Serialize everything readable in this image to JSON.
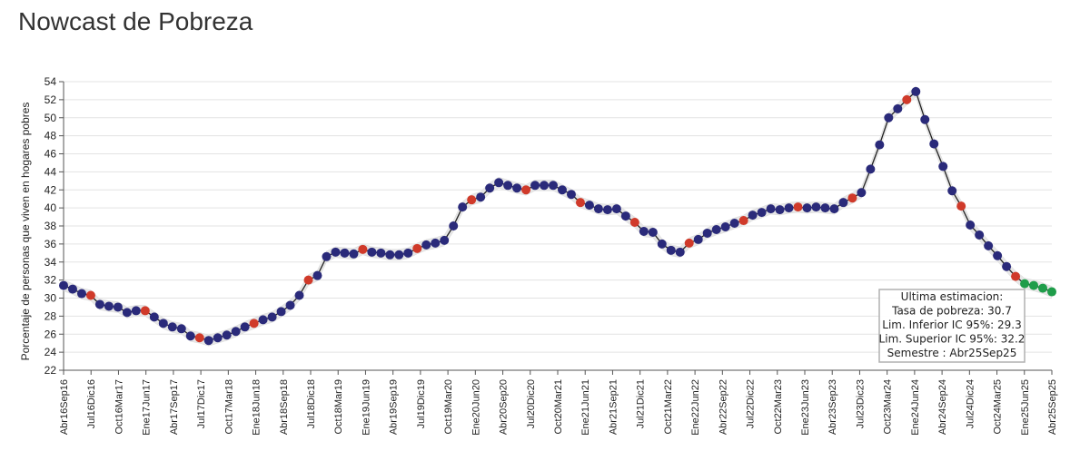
{
  "page": {
    "title": "Nowcast de Pobreza"
  },
  "chart_data": {
    "type": "line",
    "ylabel": "Porcentaje de personas que viven en hogares pobres",
    "xlabel": "",
    "ylim": [
      22,
      54
    ],
    "yticks": [
      22,
      24,
      26,
      28,
      30,
      32,
      34,
      36,
      38,
      40,
      42,
      44,
      46,
      48,
      50,
      52,
      54
    ],
    "grid": true,
    "x_ticks": [
      "Abr16Sep16",
      "Jul16Dic16",
      "Oct16Mar17",
      "Ene17Jun17",
      "Abr17Sep17",
      "Jul17Dic17",
      "Oct17Mar18",
      "Ene18Jun18",
      "Abr18Sep18",
      "Jul18Dic18",
      "Oct18Mar19",
      "Ene19Jun19",
      "Abr19Sep19",
      "Jul19Dic19",
      "Oct19Mar20",
      "Ene20Jun20",
      "Abr20Sep20",
      "Jul20Dic20",
      "Oct20Mar21",
      "Ene21Jun21",
      "Abr21Sep21",
      "Jul21Dic21",
      "Oct21Mar22",
      "Ene22Jun22",
      "Abr22Sep22",
      "Jul22Dic22",
      "Oct22Mar23",
      "Ene23Jun23",
      "Abr23Sep23",
      "Jul23Dic23",
      "Oct23Mar24",
      "Ene24Jun24",
      "Abr24Sep24",
      "Jul24Dic24",
      "Oct24Mar25",
      "Ene25Jun25",
      "Abr25Sep25"
    ],
    "values": [
      31.4,
      31.0,
      30.5,
      30.3,
      29.3,
      29.1,
      29.0,
      28.4,
      28.6,
      28.6,
      27.9,
      27.2,
      26.8,
      26.6,
      25.8,
      25.6,
      25.3,
      25.6,
      25.9,
      26.3,
      26.8,
      27.2,
      27.6,
      27.9,
      28.5,
      29.2,
      30.3,
      32.0,
      32.5,
      34.6,
      35.1,
      35.0,
      34.9,
      35.4,
      35.1,
      35.0,
      34.8,
      34.8,
      35.0,
      35.5,
      35.9,
      36.1,
      36.4,
      38.0,
      40.1,
      40.9,
      41.2,
      42.2,
      42.8,
      42.5,
      42.2,
      42.0,
      42.5,
      42.5,
      42.5,
      42.0,
      41.5,
      40.6,
      40.3,
      39.9,
      39.8,
      39.9,
      39.1,
      38.4,
      37.4,
      37.3,
      36.0,
      35.3,
      35.1,
      36.1,
      36.5,
      37.2,
      37.6,
      37.9,
      38.3,
      38.6,
      39.2,
      39.5,
      39.9,
      39.8,
      40.0,
      40.1,
      40.0,
      40.1,
      40.0,
      39.9,
      40.6,
      41.1,
      41.7,
      44.3,
      47.0,
      50.0,
      51.0,
      52.0,
      52.9,
      49.8,
      47.1,
      44.6,
      41.9,
      40.2,
      38.1,
      37.0,
      35.8,
      34.7,
      33.5,
      32.4,
      31.6,
      31.4,
      31.1,
      30.7
    ],
    "point_types": [
      "n",
      "n",
      "n",
      "r",
      "n",
      "n",
      "n",
      "n",
      "n",
      "r",
      "n",
      "n",
      "n",
      "n",
      "n",
      "r",
      "n",
      "n",
      "n",
      "n",
      "n",
      "r",
      "n",
      "n",
      "n",
      "n",
      "n",
      "r",
      "n",
      "n",
      "n",
      "n",
      "n",
      "r",
      "n",
      "n",
      "n",
      "n",
      "n",
      "r",
      "n",
      "n",
      "n",
      "n",
      "n",
      "r",
      "n",
      "n",
      "n",
      "n",
      "n",
      "r",
      "n",
      "n",
      "n",
      "n",
      "n",
      "r",
      "n",
      "n",
      "n",
      "n",
      "n",
      "r",
      "n",
      "n",
      "n",
      "n",
      "n",
      "r",
      "n",
      "n",
      "n",
      "n",
      "n",
      "r",
      "n",
      "n",
      "n",
      "n",
      "n",
      "r",
      "n",
      "n",
      "n",
      "n",
      "n",
      "r",
      "n",
      "n",
      "n",
      "n",
      "n",
      "r",
      "n",
      "n",
      "n",
      "n",
      "n",
      "r",
      "n",
      "n",
      "n",
      "n",
      "n",
      "r",
      "e",
      "e",
      "e",
      "e"
    ],
    "point_colors": {
      "n": "#2a2a7a",
      "r": "#d03a2a",
      "e": "#1f9d4a"
    },
    "line_color": "#222222",
    "band_color": "#e7e7e7",
    "band_halfwidth": 0.6,
    "tooltip": {
      "lines": [
        "Ultima estimacion:",
        "Tasa de pobreza:  30.7",
        "Lim. Inferior IC 95%:  29.3",
        "Lim. Superior IC 95%:  32.2",
        "Semestre : Abr25Sep25"
      ]
    }
  }
}
